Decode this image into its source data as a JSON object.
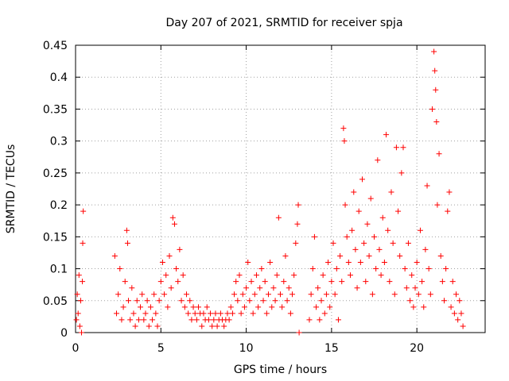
{
  "chart_data": {
    "type": "scatter",
    "title": "Day 207 of 2021, SRMTID for receiver spja",
    "xlabel": "GPS time / hours",
    "ylabel": "SRMTID / TECUs",
    "xlim": [
      0,
      24
    ],
    "ylim": [
      0,
      0.45
    ],
    "x_ticks": [
      0,
      5,
      10,
      15,
      20
    ],
    "x_tick_labels": [
      "0",
      "5",
      "10",
      "15",
      "20"
    ],
    "y_ticks": [
      0,
      0.05,
      0.1,
      0.15,
      0.2,
      0.25,
      0.3,
      0.35,
      0.4,
      0.45
    ],
    "y_tick_labels": [
      "0",
      "0.05",
      "0.1",
      "0.15",
      "0.2",
      "0.25",
      "0.3",
      "0.35",
      "0.4",
      "0.45"
    ],
    "grid": true,
    "marker": "+",
    "series": [
      {
        "name": "SRMTID",
        "color": "#ff0000",
        "points": [
          [
            0.05,
            0.02
          ],
          [
            0.1,
            0.06
          ],
          [
            0.15,
            0.03
          ],
          [
            0.2,
            0.09
          ],
          [
            0.25,
            0.01
          ],
          [
            0.3,
            0.05
          ],
          [
            0.35,
            0.0
          ],
          [
            0.4,
            0.08
          ],
          [
            0.42,
            0.14
          ],
          [
            0.45,
            0.19
          ],
          [
            2.3,
            0.12
          ],
          [
            2.4,
            0.03
          ],
          [
            2.5,
            0.06
          ],
          [
            2.6,
            0.1
          ],
          [
            2.7,
            0.02
          ],
          [
            2.8,
            0.04
          ],
          [
            2.9,
            0.08
          ],
          [
            3.0,
            0.16
          ],
          [
            3.05,
            0.14
          ],
          [
            3.1,
            0.05
          ],
          [
            3.2,
            0.02
          ],
          [
            3.3,
            0.07
          ],
          [
            3.4,
            0.03
          ],
          [
            3.5,
            0.01
          ],
          [
            3.6,
            0.05
          ],
          [
            3.7,
            0.02
          ],
          [
            3.8,
            0.04
          ],
          [
            3.9,
            0.06
          ],
          [
            4.0,
            0.02
          ],
          [
            4.1,
            0.03
          ],
          [
            4.2,
            0.05
          ],
          [
            4.3,
            0.01
          ],
          [
            4.4,
            0.04
          ],
          [
            4.5,
            0.02
          ],
          [
            4.6,
            0.06
          ],
          [
            4.7,
            0.03
          ],
          [
            4.8,
            0.01
          ],
          [
            4.9,
            0.05
          ],
          [
            5.0,
            0.08
          ],
          [
            5.1,
            0.11
          ],
          [
            5.2,
            0.06
          ],
          [
            5.3,
            0.09
          ],
          [
            5.4,
            0.04
          ],
          [
            5.5,
            0.12
          ],
          [
            5.6,
            0.07
          ],
          [
            5.7,
            0.18
          ],
          [
            5.8,
            0.17
          ],
          [
            5.9,
            0.1
          ],
          [
            6.0,
            0.08
          ],
          [
            6.1,
            0.13
          ],
          [
            6.2,
            0.05
          ],
          [
            6.3,
            0.09
          ],
          [
            6.4,
            0.04
          ],
          [
            6.5,
            0.06
          ],
          [
            6.6,
            0.03
          ],
          [
            6.7,
            0.05
          ],
          [
            6.8,
            0.02
          ],
          [
            6.9,
            0.04
          ],
          [
            7.0,
            0.03
          ],
          [
            7.1,
            0.02
          ],
          [
            7.2,
            0.04
          ],
          [
            7.3,
            0.03
          ],
          [
            7.4,
            0.01
          ],
          [
            7.5,
            0.03
          ],
          [
            7.6,
            0.02
          ],
          [
            7.7,
            0.04
          ],
          [
            7.8,
            0.02
          ],
          [
            7.9,
            0.03
          ],
          [
            8.0,
            0.01
          ],
          [
            8.1,
            0.02
          ],
          [
            8.2,
            0.03
          ],
          [
            8.3,
            0.01
          ],
          [
            8.4,
            0.02
          ],
          [
            8.5,
            0.03
          ],
          [
            8.6,
            0.02
          ],
          [
            8.7,
            0.01
          ],
          [
            8.8,
            0.02
          ],
          [
            8.9,
            0.03
          ],
          [
            9.0,
            0.02
          ],
          [
            9.1,
            0.04
          ],
          [
            9.2,
            0.03
          ],
          [
            9.3,
            0.06
          ],
          [
            9.4,
            0.08
          ],
          [
            9.5,
            0.05
          ],
          [
            9.6,
            0.09
          ],
          [
            9.7,
            0.03
          ],
          [
            9.8,
            0.06
          ],
          [
            9.9,
            0.04
          ],
          [
            10.0,
            0.07
          ],
          [
            10.1,
            0.11
          ],
          [
            10.2,
            0.05
          ],
          [
            10.3,
            0.08
          ],
          [
            10.4,
            0.03
          ],
          [
            10.5,
            0.06
          ],
          [
            10.6,
            0.09
          ],
          [
            10.7,
            0.04
          ],
          [
            10.8,
            0.07
          ],
          [
            10.9,
            0.1
          ],
          [
            11.0,
            0.05
          ],
          [
            11.1,
            0.08
          ],
          [
            11.2,
            0.03
          ],
          [
            11.3,
            0.06
          ],
          [
            11.4,
            0.11
          ],
          [
            11.5,
            0.04
          ],
          [
            11.6,
            0.07
          ],
          [
            11.7,
            0.05
          ],
          [
            11.8,
            0.09
          ],
          [
            11.9,
            0.18
          ],
          [
            12.0,
            0.06
          ],
          [
            12.1,
            0.04
          ],
          [
            12.2,
            0.08
          ],
          [
            12.3,
            0.12
          ],
          [
            12.4,
            0.05
          ],
          [
            12.5,
            0.07
          ],
          [
            12.6,
            0.03
          ],
          [
            12.7,
            0.06
          ],
          [
            12.8,
            0.09
          ],
          [
            12.9,
            0.14
          ],
          [
            13.0,
            0.17
          ],
          [
            13.05,
            0.2
          ],
          [
            13.1,
            0.0
          ],
          [
            13.7,
            0.02
          ],
          [
            13.8,
            0.06
          ],
          [
            13.9,
            0.1
          ],
          [
            14.0,
            0.15
          ],
          [
            14.1,
            0.04
          ],
          [
            14.2,
            0.07
          ],
          [
            14.3,
            0.02
          ],
          [
            14.4,
            0.05
          ],
          [
            14.5,
            0.09
          ],
          [
            14.6,
            0.03
          ],
          [
            14.7,
            0.06
          ],
          [
            14.8,
            0.11
          ],
          [
            14.9,
            0.04
          ],
          [
            15.0,
            0.08
          ],
          [
            15.1,
            0.14
          ],
          [
            15.2,
            0.06
          ],
          [
            15.3,
            0.1
          ],
          [
            15.4,
            0.02
          ],
          [
            15.5,
            0.12
          ],
          [
            15.6,
            0.08
          ],
          [
            15.7,
            0.32
          ],
          [
            15.75,
            0.3
          ],
          [
            15.8,
            0.2
          ],
          [
            15.9,
            0.15
          ],
          [
            16.0,
            0.11
          ],
          [
            16.1,
            0.09
          ],
          [
            16.2,
            0.16
          ],
          [
            16.3,
            0.22
          ],
          [
            16.4,
            0.13
          ],
          [
            16.5,
            0.07
          ],
          [
            16.6,
            0.19
          ],
          [
            16.7,
            0.11
          ],
          [
            16.8,
            0.24
          ],
          [
            16.9,
            0.14
          ],
          [
            17.0,
            0.08
          ],
          [
            17.1,
            0.17
          ],
          [
            17.2,
            0.12
          ],
          [
            17.3,
            0.21
          ],
          [
            17.4,
            0.06
          ],
          [
            17.5,
            0.15
          ],
          [
            17.6,
            0.1
          ],
          [
            17.7,
            0.27
          ],
          [
            17.8,
            0.13
          ],
          [
            17.9,
            0.09
          ],
          [
            18.0,
            0.18
          ],
          [
            18.1,
            0.11
          ],
          [
            18.2,
            0.31
          ],
          [
            18.3,
            0.16
          ],
          [
            18.4,
            0.08
          ],
          [
            18.5,
            0.22
          ],
          [
            18.6,
            0.14
          ],
          [
            18.7,
            0.06
          ],
          [
            18.8,
            0.29
          ],
          [
            18.9,
            0.19
          ],
          [
            19.0,
            0.12
          ],
          [
            19.1,
            0.25
          ],
          [
            19.2,
            0.29
          ],
          [
            19.3,
            0.1
          ],
          [
            19.4,
            0.07
          ],
          [
            19.5,
            0.14
          ],
          [
            19.6,
            0.05
          ],
          [
            19.7,
            0.09
          ],
          [
            19.8,
            0.04
          ],
          [
            19.9,
            0.07
          ],
          [
            20.0,
            0.11
          ],
          [
            20.1,
            0.06
          ],
          [
            20.2,
            0.16
          ],
          [
            20.3,
            0.08
          ],
          [
            20.4,
            0.04
          ],
          [
            20.5,
            0.13
          ],
          [
            20.6,
            0.23
          ],
          [
            20.7,
            0.1
          ],
          [
            20.8,
            0.06
          ],
          [
            20.9,
            0.35
          ],
          [
            21.0,
            0.44
          ],
          [
            21.05,
            0.41
          ],
          [
            21.1,
            0.38
          ],
          [
            21.15,
            0.33
          ],
          [
            21.2,
            0.2
          ],
          [
            21.3,
            0.28
          ],
          [
            21.4,
            0.12
          ],
          [
            21.5,
            0.08
          ],
          [
            21.6,
            0.05
          ],
          [
            21.7,
            0.1
          ],
          [
            21.8,
            0.19
          ],
          [
            21.9,
            0.22
          ],
          [
            22.0,
            0.04
          ],
          [
            22.1,
            0.08
          ],
          [
            22.2,
            0.03
          ],
          [
            22.3,
            0.06
          ],
          [
            22.4,
            0.02
          ],
          [
            22.5,
            0.05
          ],
          [
            22.6,
            0.03
          ],
          [
            22.7,
            0.01
          ]
        ]
      }
    ]
  }
}
